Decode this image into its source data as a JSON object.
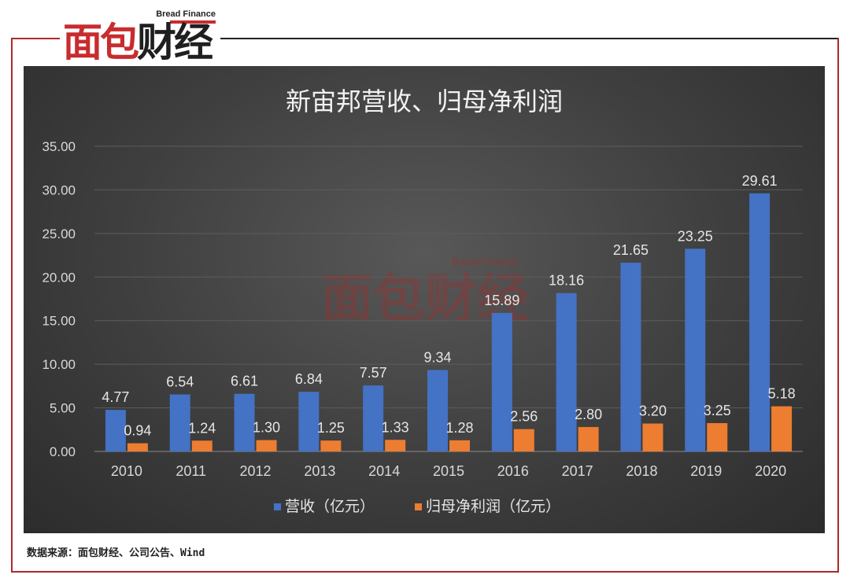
{
  "logo": {
    "english": "Bread Finance",
    "chars": [
      "面",
      "包",
      "财",
      "经"
    ]
  },
  "watermark": {
    "english": "Bread Finance",
    "text": "面包财经"
  },
  "source_note": "数据来源：面包财经、公司公告、Wind",
  "colors": {
    "frame": "#b0282a",
    "brand_red": "#c82c2e",
    "revenue": "#4472c4",
    "profit": "#ed7d31"
  },
  "chart_data": {
    "type": "bar",
    "title": "新宙邦营收、归母净利润",
    "categories": [
      "2010",
      "2011",
      "2012",
      "2013",
      "2014",
      "2015",
      "2016",
      "2017",
      "2018",
      "2019",
      "2020"
    ],
    "series": [
      {
        "name": "营收（亿元）",
        "values": [
          4.77,
          6.54,
          6.61,
          6.84,
          7.57,
          9.34,
          15.89,
          18.16,
          21.65,
          23.25,
          29.61
        ],
        "labels": [
          "4.77",
          "6.54",
          "6.61",
          "6.84",
          "7.57",
          "9.34",
          "15.89",
          "18.16",
          "21.65",
          "23.25",
          "29.61"
        ]
      },
      {
        "name": "归母净利润（亿元）",
        "values": [
          0.94,
          1.24,
          1.3,
          1.25,
          1.33,
          1.28,
          2.56,
          2.8,
          3.2,
          3.25,
          5.18
        ],
        "labels": [
          "0.94",
          "1.24",
          "1.30",
          "1.25",
          "1.33",
          "1.28",
          "2.56",
          "2.80",
          "3.20",
          "3.25",
          "5.18"
        ]
      }
    ],
    "yticks": [
      "0.00",
      "5.00",
      "10.00",
      "15.00",
      "20.00",
      "25.00",
      "30.00",
      "35.00"
    ],
    "ylim": [
      0,
      35
    ],
    "grid": true,
    "legend_position": "bottom"
  }
}
